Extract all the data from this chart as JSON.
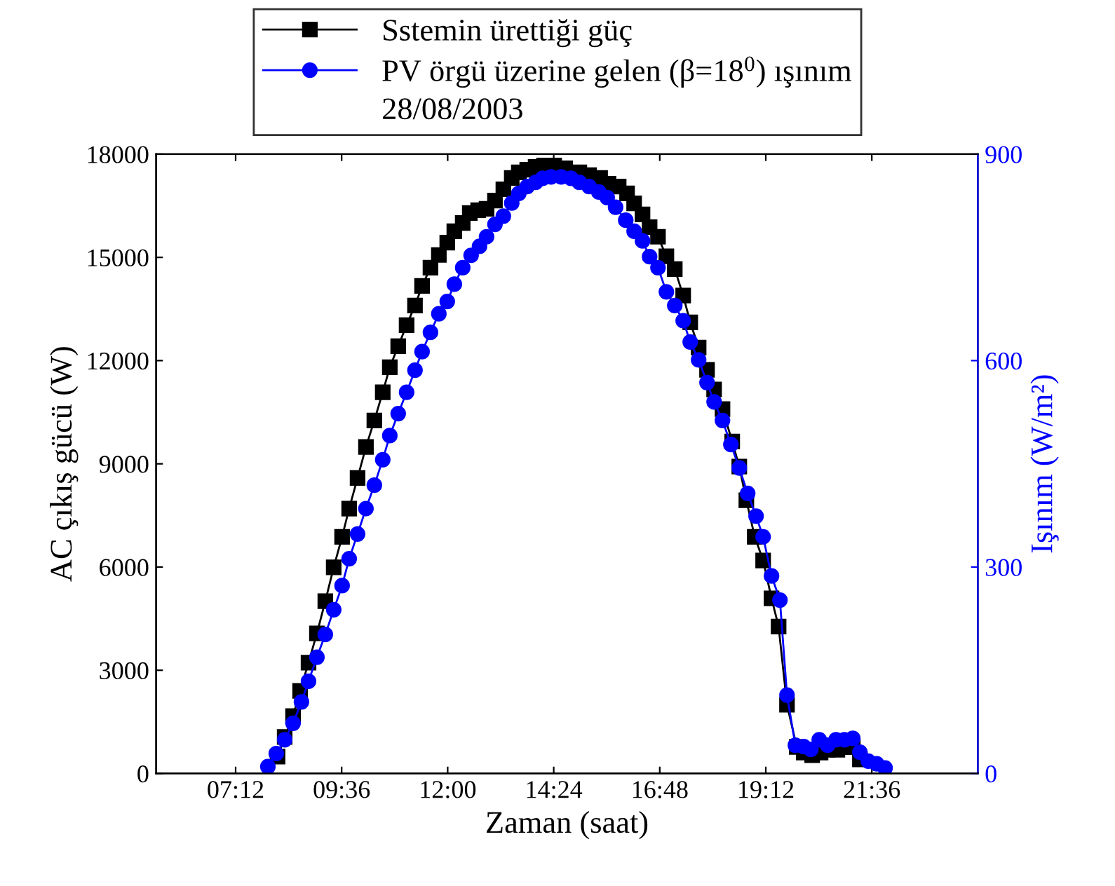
{
  "chart_data": {
    "type": "line",
    "xlabel": "Zaman (saat)",
    "ylabel": "AC çıkış gücü (W)",
    "y2label": "Işınım (W/m²)",
    "xlim": [
      5.4,
      24.0
    ],
    "xticks": [
      {
        "value": 7.2,
        "label": "07:12"
      },
      {
        "value": 9.6,
        "label": "09:36"
      },
      {
        "value": 12.0,
        "label": "12:00"
      },
      {
        "value": 14.4,
        "label": "14:24"
      },
      {
        "value": 16.8,
        "label": "16:48"
      },
      {
        "value": 19.2,
        "label": "19:12"
      },
      {
        "value": 21.6,
        "label": "21:36"
      }
    ],
    "ylim": [
      0,
      18000
    ],
    "yticks": [
      0,
      3000,
      6000,
      9000,
      12000,
      15000,
      18000
    ],
    "y2lim": [
      0,
      900
    ],
    "y2ticks": [
      0,
      300,
      600,
      900
    ],
    "legend": "top",
    "grid": false,
    "line_style": "solid",
    "annotations": [
      "28/08/2003"
    ],
    "series": [
      {
        "name": "Sstemin ürettiği güç",
        "color": "#000000",
        "marker": "square",
        "x": [
          8.15,
          8.31,
          8.5,
          8.66,
          8.85,
          9.04,
          9.23,
          9.42,
          9.61,
          9.77,
          9.96,
          10.15,
          10.34,
          10.53,
          10.69,
          10.88,
          11.07,
          11.26,
          11.42,
          11.61,
          11.8,
          11.99,
          12.15,
          12.34,
          12.5,
          12.69,
          12.88,
          13.07,
          13.26,
          13.45,
          13.61,
          13.8,
          13.99,
          14.18,
          14.41,
          14.66,
          14.98,
          15.2,
          15.45,
          15.64,
          15.87,
          16.06,
          16.22,
          16.41,
          16.57,
          16.76,
          16.95,
          17.14,
          17.33,
          17.49,
          17.68,
          17.87,
          18.03,
          18.22,
          18.44,
          18.6,
          18.76,
          18.95,
          19.14,
          19.33,
          19.49,
          19.68,
          19.9,
          20.06,
          20.25,
          20.44,
          20.6,
          20.82,
          21.01,
          21.17,
          21.33
        ],
        "values": [
          490,
          1060,
          1670,
          2400,
          3220,
          4070,
          5010,
          5990,
          6880,
          7700,
          8590,
          9490,
          10260,
          11080,
          11810,
          12420,
          13030,
          13600,
          14170,
          14700,
          15070,
          15430,
          15760,
          16000,
          16290,
          16370,
          16410,
          16650,
          16980,
          17310,
          17470,
          17550,
          17630,
          17670,
          17670,
          17590,
          17470,
          17390,
          17310,
          17140,
          17060,
          16860,
          16570,
          16250,
          15880,
          15600,
          15030,
          14660,
          13890,
          13110,
          12380,
          11730,
          11160,
          10590,
          9650,
          8920,
          7940,
          6880,
          6190,
          5090,
          4270,
          2000,
          770,
          610,
          530,
          610,
          690,
          690,
          770,
          770,
          410
        ]
      },
      {
        "name": "PV örgü üzerine gelen (β=18$^{0}$) ışınım",
        "color": "#0000ff",
        "marker": "circle",
        "axis": "y2",
        "x": [
          7.93,
          8.12,
          8.31,
          8.5,
          8.69,
          8.85,
          9.04,
          9.23,
          9.42,
          9.61,
          9.77,
          9.96,
          10.15,
          10.34,
          10.53,
          10.69,
          10.88,
          11.07,
          11.26,
          11.42,
          11.61,
          11.8,
          11.99,
          12.15,
          12.34,
          12.53,
          12.72,
          12.88,
          13.07,
          13.26,
          13.45,
          13.61,
          13.8,
          13.99,
          14.15,
          14.34,
          14.57,
          14.79,
          14.98,
          15.2,
          15.42,
          15.61,
          15.8,
          16.03,
          16.22,
          16.41,
          16.57,
          16.76,
          16.95,
          17.14,
          17.33,
          17.49,
          17.68,
          17.87,
          18.03,
          18.22,
          18.41,
          18.6,
          18.79,
          18.98,
          19.14,
          19.33,
          19.52,
          19.68,
          19.87,
          20.06,
          20.22,
          20.41,
          20.6,
          20.79,
          20.98,
          21.17,
          21.33,
          21.52,
          21.71,
          21.9
        ],
        "values": [
          10,
          29,
          49,
          73,
          104,
          134,
          169,
          202,
          238,
          273,
          312,
          348,
          385,
          419,
          456,
          491,
          523,
          554,
          586,
          613,
          641,
          668,
          686,
          711,
          735,
          753,
          766,
          780,
          798,
          810,
          829,
          843,
          853,
          859,
          865,
          867,
          867,
          865,
          859,
          853,
          845,
          837,
          823,
          804,
          788,
          774,
          751,
          735,
          700,
          680,
          658,
          627,
          601,
          568,
          540,
          513,
          478,
          444,
          407,
          374,
          344,
          287,
          252,
          114,
          41,
          39,
          35,
          49,
          41,
          49,
          49,
          51,
          31,
          18,
          14,
          8
        ]
      }
    ]
  }
}
